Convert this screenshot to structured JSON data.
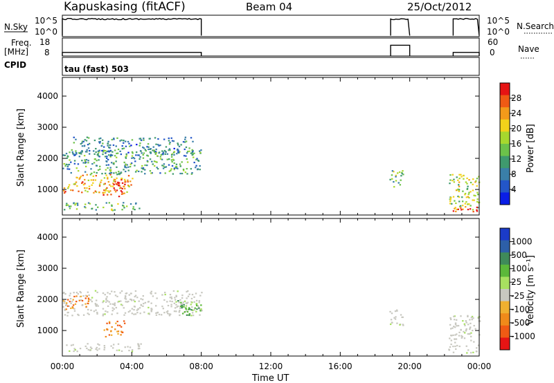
{
  "header": {
    "station": "Kapuskasing (fitACF)",
    "beam": "Beam 04",
    "date": "25/Oct/2012"
  },
  "nsky_panel": {
    "left_label": "N.Sky",
    "left_top_tick": "10^5",
    "left_bottom_tick": "10^0",
    "right_label": "N.Search",
    "right_top_tick": "10^5",
    "right_bottom_tick": "10^0"
  },
  "freq_panel": {
    "left_label_1": "Freq.",
    "left_label_2": "[MHz]",
    "left_top_tick": "18",
    "left_bottom_tick": "8",
    "right_label": "Nave",
    "right_top_tick": "60",
    "right_bottom_tick": "0"
  },
  "cpid": {
    "label": "CPID",
    "value": "tau (fast) 503"
  },
  "chart_data": [
    {
      "type": "heatmap",
      "quantity": "Power",
      "ylabel": "Slant Range [km]",
      "xlabel": "",
      "ylim": [
        180,
        4600
      ],
      "xlim_hours": [
        0,
        24
      ],
      "y_ticks": [
        "1000",
        "2000",
        "3000",
        "4000"
      ],
      "x_ticks": [
        "00:00",
        "04:00",
        "08:00",
        "12:00",
        "16:00",
        "20:00",
        "00:00"
      ],
      "colorbar": {
        "label": "Power [dB]",
        "ticks": [
          "4",
          "8",
          "12",
          "16",
          "20",
          "24",
          "28"
        ],
        "colors": [
          "#0a1ee6",
          "#2356c8",
          "#3a7fa8",
          "#3f9a6e",
          "#6cc24a",
          "#a6d82e",
          "#f2d21a",
          "#f39a1a",
          "#ef5a14",
          "#e61414"
        ]
      },
      "regions": [
        {
          "name": "main band",
          "t": [
            0.0,
            8.0
          ],
          "range": [
            1500,
            2300
          ],
          "level": 0.35
        },
        {
          "name": "lower band",
          "t": [
            0.0,
            4.0
          ],
          "range": [
            900,
            1500
          ],
          "level": 0.75
        },
        {
          "name": "patch",
          "t": [
            2.3,
            3.6
          ],
          "range": [
            800,
            1350
          ],
          "level": 0.95
        },
        {
          "name": "upper scatter",
          "t": [
            0.5,
            7.5
          ],
          "range": [
            2100,
            2700
          ],
          "level": 0.25
        },
        {
          "name": "near range",
          "t": [
            0.0,
            4.5
          ],
          "range": [
            350,
            600
          ],
          "level": 0.4
        },
        {
          "name": "dusk patch",
          "t": [
            18.8,
            19.6
          ],
          "range": [
            1100,
            1700
          ],
          "level": 0.45
        },
        {
          "name": "night block",
          "t": [
            22.2,
            24.0
          ],
          "range": [
            300,
            1500
          ],
          "level": 0.55
        },
        {
          "name": "night red edge",
          "t": [
            22.3,
            24.0
          ],
          "range": [
            300,
            450
          ],
          "level": 1.0
        }
      ]
    },
    {
      "type": "heatmap",
      "quantity": "Velocity",
      "ylabel": "Slant Range [km]",
      "xlabel": "Time UT",
      "ylim": [
        180,
        4600
      ],
      "xlim_hours": [
        0,
        24
      ],
      "y_ticks": [
        "1000",
        "2000",
        "3000",
        "4000"
      ],
      "x_ticks": [
        "00:00",
        "04:00",
        "08:00",
        "12:00",
        "16:00",
        "20:00",
        "00:00"
      ],
      "colorbar": {
        "label": "Velocity [m s⁻¹]",
        "ticks": [
          "1000",
          "500",
          "100",
          "25",
          "-25",
          "-100",
          "-500",
          "-1000"
        ],
        "colors": [
          "#1b3bc8",
          "#2d5fa8",
          "#3f8a5a",
          "#5cb83a",
          "#a8e060",
          "#c8c8c0",
          "#f0b030",
          "#f08a1a",
          "#f05a14",
          "#e61414"
        ]
      },
      "ground_scatter_color": "#c8c8c0",
      "regions": [
        {
          "name": "main band",
          "t": [
            0.0,
            8.0
          ],
          "range": [
            1500,
            2300
          ],
          "velocity": "ground"
        },
        {
          "name": "red patch",
          "t": [
            0.0,
            1.5
          ],
          "range": [
            1700,
            2200
          ],
          "velocity": "-500"
        },
        {
          "name": "patch",
          "t": [
            2.3,
            3.6
          ],
          "range": [
            800,
            1350
          ],
          "velocity": "-500"
        },
        {
          "name": "blue-green edge",
          "t": [
            6.5,
            8.0
          ],
          "range": [
            1500,
            2000
          ],
          "velocity": "100"
        },
        {
          "name": "near range",
          "t": [
            0.0,
            4.5
          ],
          "range": [
            350,
            600
          ],
          "velocity": "ground"
        },
        {
          "name": "dusk patch",
          "t": [
            18.8,
            19.6
          ],
          "range": [
            1100,
            1700
          ],
          "velocity": "ground"
        },
        {
          "name": "night block",
          "t": [
            22.2,
            24.0
          ],
          "range": [
            300,
            1500
          ],
          "velocity": "ground"
        }
      ]
    }
  ],
  "nsky_trace": {
    "segments": [
      [
        0.0,
        8.0
      ],
      [
        18.9,
        20.0
      ],
      [
        22.5,
        24.0
      ]
    ],
    "level_high": 0.85,
    "level_low": 0.05
  },
  "freq_trace": {
    "segments": [
      [
        0.0,
        8.0
      ],
      [
        18.9,
        20.0
      ],
      [
        22.5,
        24.0
      ]
    ],
    "freq_mhz": [
      10,
      14,
      10
    ]
  }
}
